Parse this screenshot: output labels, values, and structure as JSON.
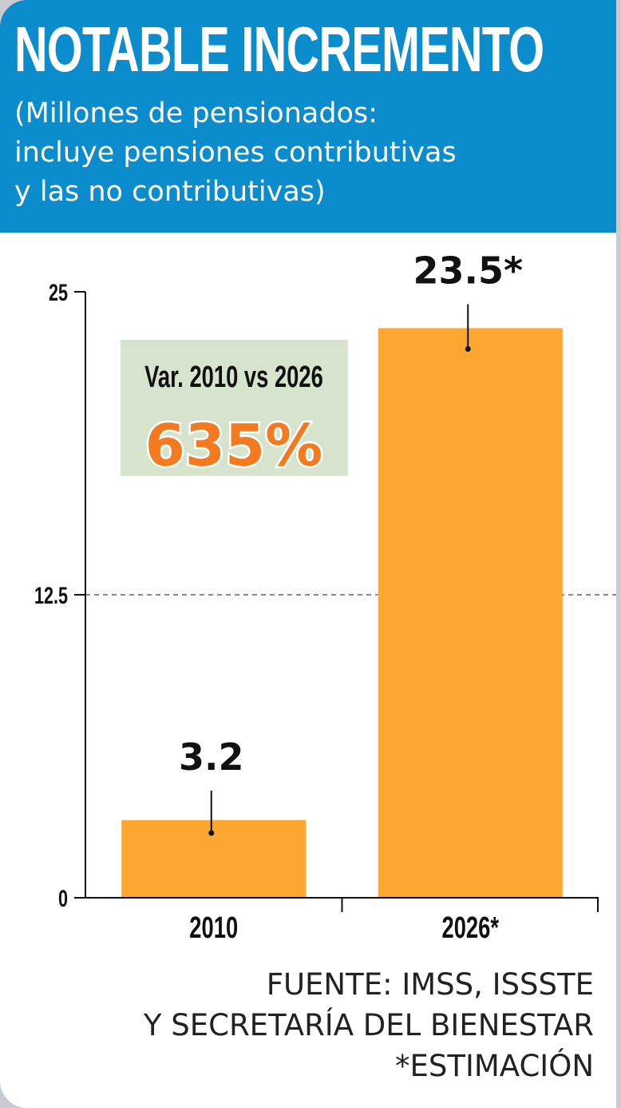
{
  "header": {
    "title": "NOTABLE INCREMENTO",
    "subtitle_lines": [
      "(Millones de pensionados:",
      "incluye pensiones contributivas",
      "y las no contributivas)"
    ]
  },
  "colors": {
    "header_bg": "#0b8ccd",
    "bar": "#fba732",
    "highlight_bg": "#d6e4ce",
    "highlight_value": "#f47a20"
  },
  "chart_data": {
    "type": "bar",
    "categories": [
      "2010",
      "2026*"
    ],
    "values": [
      3.2,
      23.5
    ],
    "data_labels": [
      "3.2",
      "23.5*"
    ],
    "yticks": [
      0,
      12.5,
      25
    ],
    "ytick_labels": [
      "0",
      "12.5",
      "25"
    ],
    "ylim": [
      0,
      25
    ],
    "grid": "dashed line at 12.5",
    "annotation": {
      "title": "Var. 2010 vs 2026",
      "value": "635%"
    }
  },
  "footer": {
    "source_lines": [
      "FUENTE: IMSS, ISSSTE",
      "Y SECRETARÍA DEL BIENESTAR",
      "*ESTIMACIÓN"
    ]
  }
}
